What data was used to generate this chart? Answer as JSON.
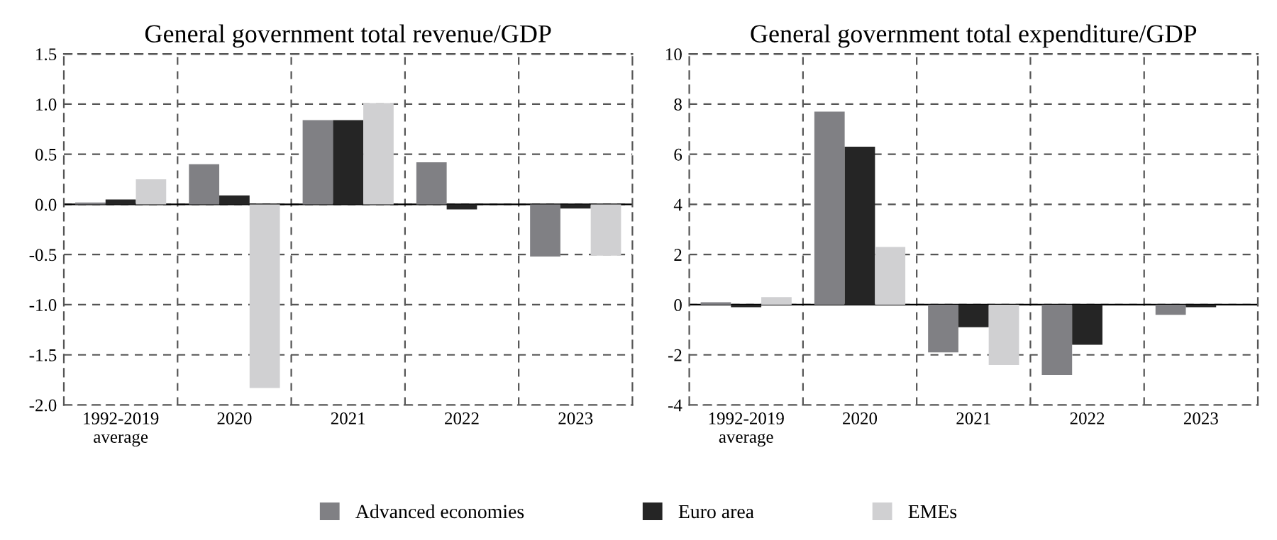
{
  "chart_data": [
    {
      "type": "bar",
      "title": "General government total revenue/GDP",
      "categories": [
        "1992-2019\naverage",
        "2020",
        "2021",
        "2022",
        "2023"
      ],
      "series": [
        {
          "name": "Advanced economies",
          "color": "#808084",
          "values": [
            0.02,
            0.4,
            0.84,
            0.42,
            -0.52
          ]
        },
        {
          "name": "Euro area",
          "color": "#252525",
          "values": [
            0.05,
            0.09,
            0.84,
            -0.05,
            -0.04
          ]
        },
        {
          "name": "EMEs",
          "color": "#d0d0d2",
          "values": [
            0.25,
            -1.83,
            1.01,
            null,
            -0.51
          ]
        }
      ],
      "ylim": [
        -2.0,
        1.5
      ],
      "yticks": [
        {
          "value": -2,
          "label": "-2.0"
        },
        -1.5,
        {
          "value": -1,
          "label": "-1.0"
        },
        -0.5,
        {
          "value": 0,
          "label": "0.0"
        },
        0.5,
        {
          "value": 1,
          "label": "1.0"
        },
        1.5
      ],
      "grid": true,
      "legend": "bottom"
    },
    {
      "type": "bar",
      "title": "General government total expenditure/GDP",
      "categories": [
        "1992-2019\naverage",
        "2020",
        "2021",
        "2022",
        "2023"
      ],
      "series": [
        {
          "name": "Advanced economies",
          "color": "#808084",
          "values": [
            0.1,
            7.7,
            -1.9,
            -2.8,
            -0.4
          ]
        },
        {
          "name": "Euro area",
          "color": "#252525",
          "values": [
            -0.1,
            6.3,
            -0.9,
            -1.6,
            -0.1
          ]
        },
        {
          "name": "EMEs",
          "color": "#d0d0d2",
          "values": [
            0.3,
            2.3,
            -2.4,
            null,
            null
          ]
        }
      ],
      "ylim": [
        -4,
        10
      ],
      "yticks": [
        -4,
        -2,
        0,
        2,
        4,
        6,
        8,
        10
      ],
      "grid": true
    }
  ]
}
